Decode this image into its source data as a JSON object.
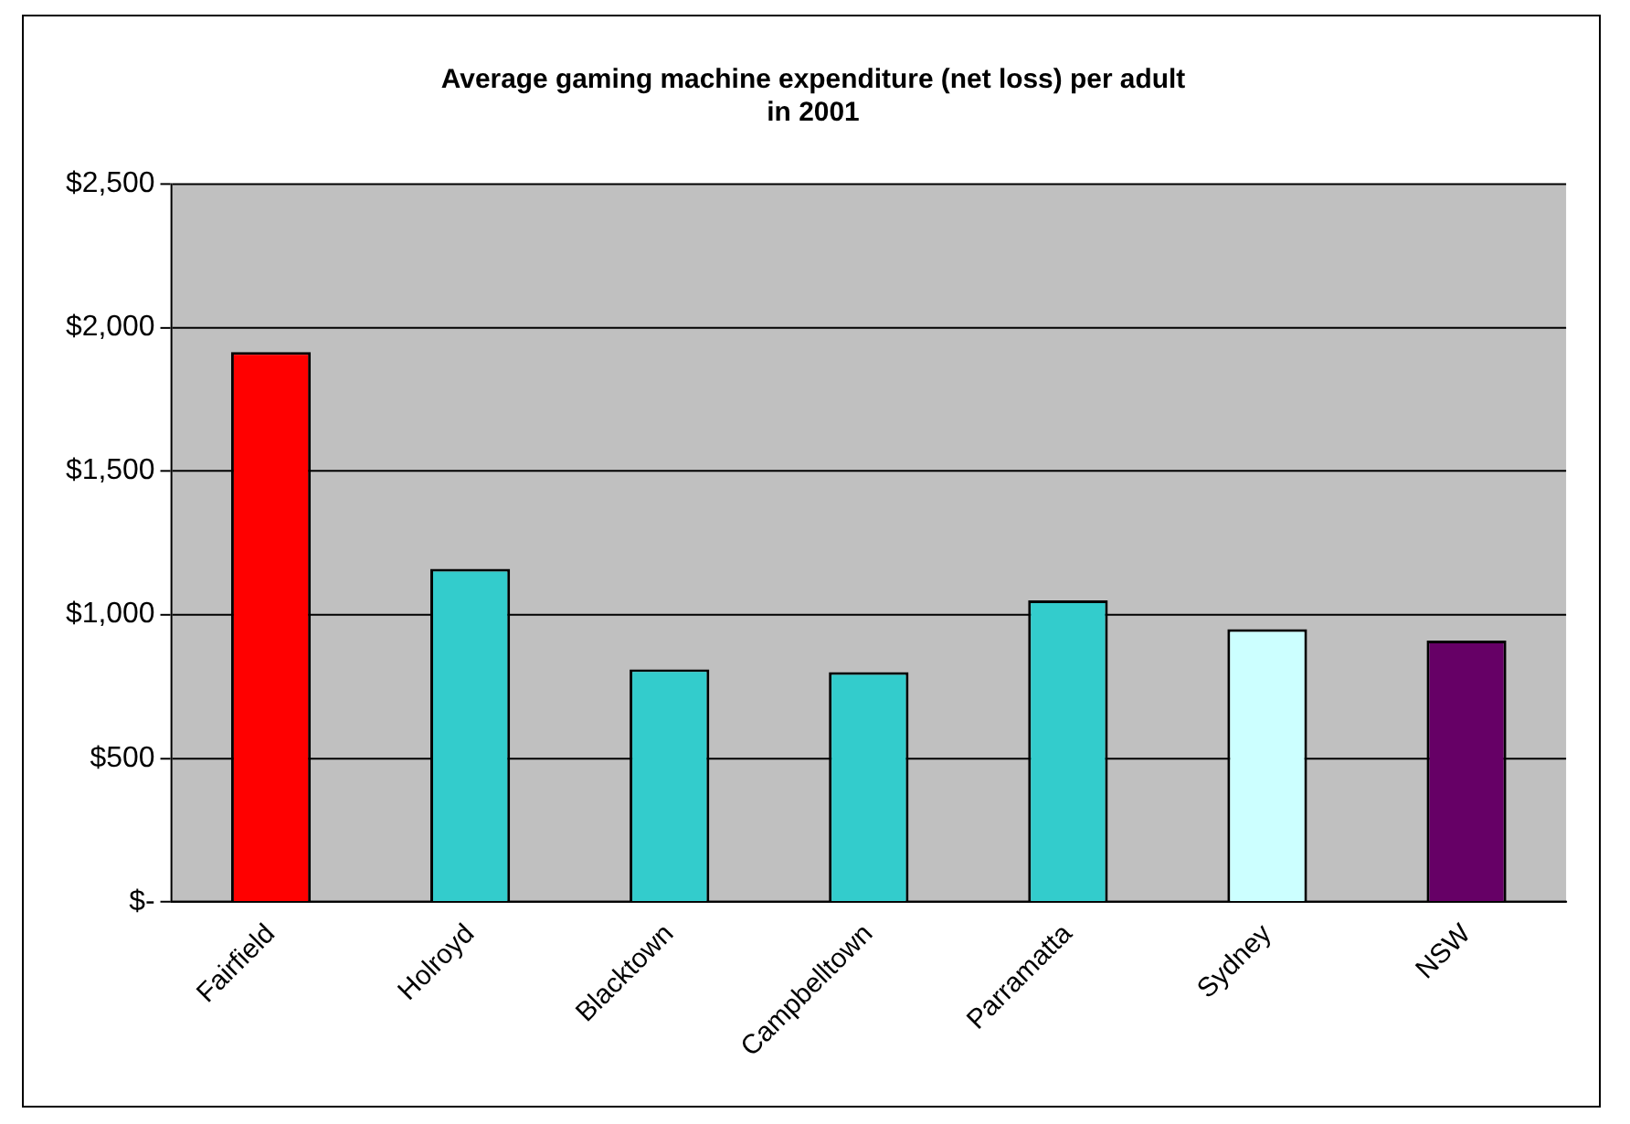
{
  "chart_data": {
    "type": "bar",
    "title": [
      "Average gaming machine expenditure (net loss) per adult",
      "in 2001"
    ],
    "categories": [
      "Fairfield",
      "Holroyd",
      "Blacktown",
      "Campbelltown",
      "Parramatta",
      "Sydney",
      "NSW"
    ],
    "values": [
      1915,
      1160,
      810,
      800,
      1050,
      950,
      910
    ],
    "colors": [
      "#ff0000",
      "#33cccc",
      "#33cccc",
      "#33cccc",
      "#33cccc",
      "#ccffff",
      "#660066"
    ],
    "ylim": [
      0,
      2500
    ],
    "yticks": [
      {
        "value": 0,
        "label": "$-"
      },
      {
        "value": 500,
        "label": "$500"
      },
      {
        "value": 1000,
        "label": "$1,000"
      },
      {
        "value": 1500,
        "label": "$1,500"
      },
      {
        "value": 2000,
        "label": "$2,000"
      },
      {
        "value": 2500,
        "label": "$2,500"
      }
    ],
    "grid": "y",
    "legend": false
  }
}
